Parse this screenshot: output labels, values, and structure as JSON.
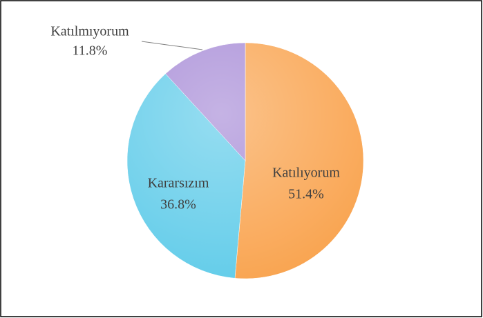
{
  "chart_data": {
    "type": "pie",
    "categories": [
      "Katılıyorum",
      "Kararsızım",
      "Katılmıyorum"
    ],
    "values": [
      51.4,
      36.8,
      11.8
    ],
    "value_labels": [
      "51.4%",
      "36.8%",
      "11.8%"
    ],
    "colors": [
      "#f9a24c",
      "#5ecbe9",
      "#a68ad6"
    ]
  }
}
